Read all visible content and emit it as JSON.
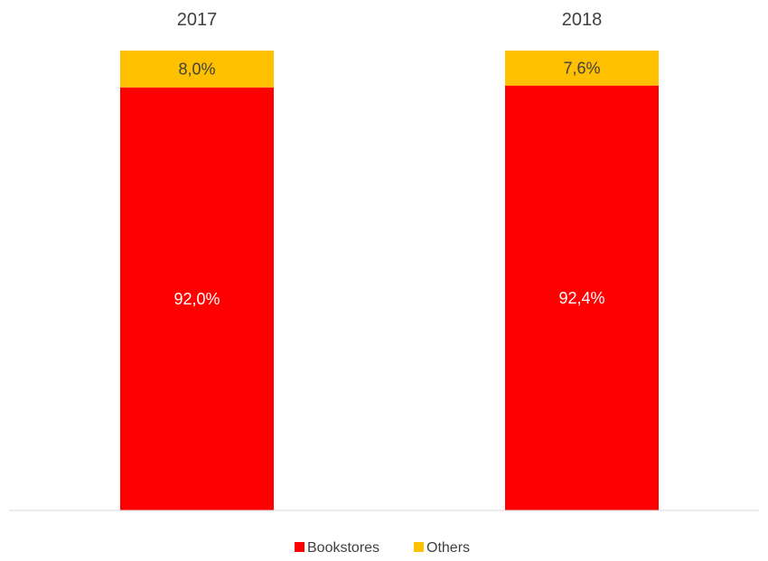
{
  "chart_data": {
    "type": "bar",
    "stacked": true,
    "categories": [
      "2017",
      "2018"
    ],
    "series": [
      {
        "name": "Bookstores",
        "values": [
          92.0,
          92.4
        ],
        "labels": [
          "92,0%",
          "92,4%"
        ],
        "color": "#ff0000",
        "label_color": "#ffffff"
      },
      {
        "name": "Others",
        "values": [
          8.0,
          7.6
        ],
        "labels": [
          "8,0%",
          "7,6%"
        ],
        "color": "#ffc000",
        "label_color": "#404040"
      }
    ],
    "ylim": [
      0,
      100
    ],
    "grid": false,
    "legend_position": "bottom",
    "category_label_position": "top"
  }
}
